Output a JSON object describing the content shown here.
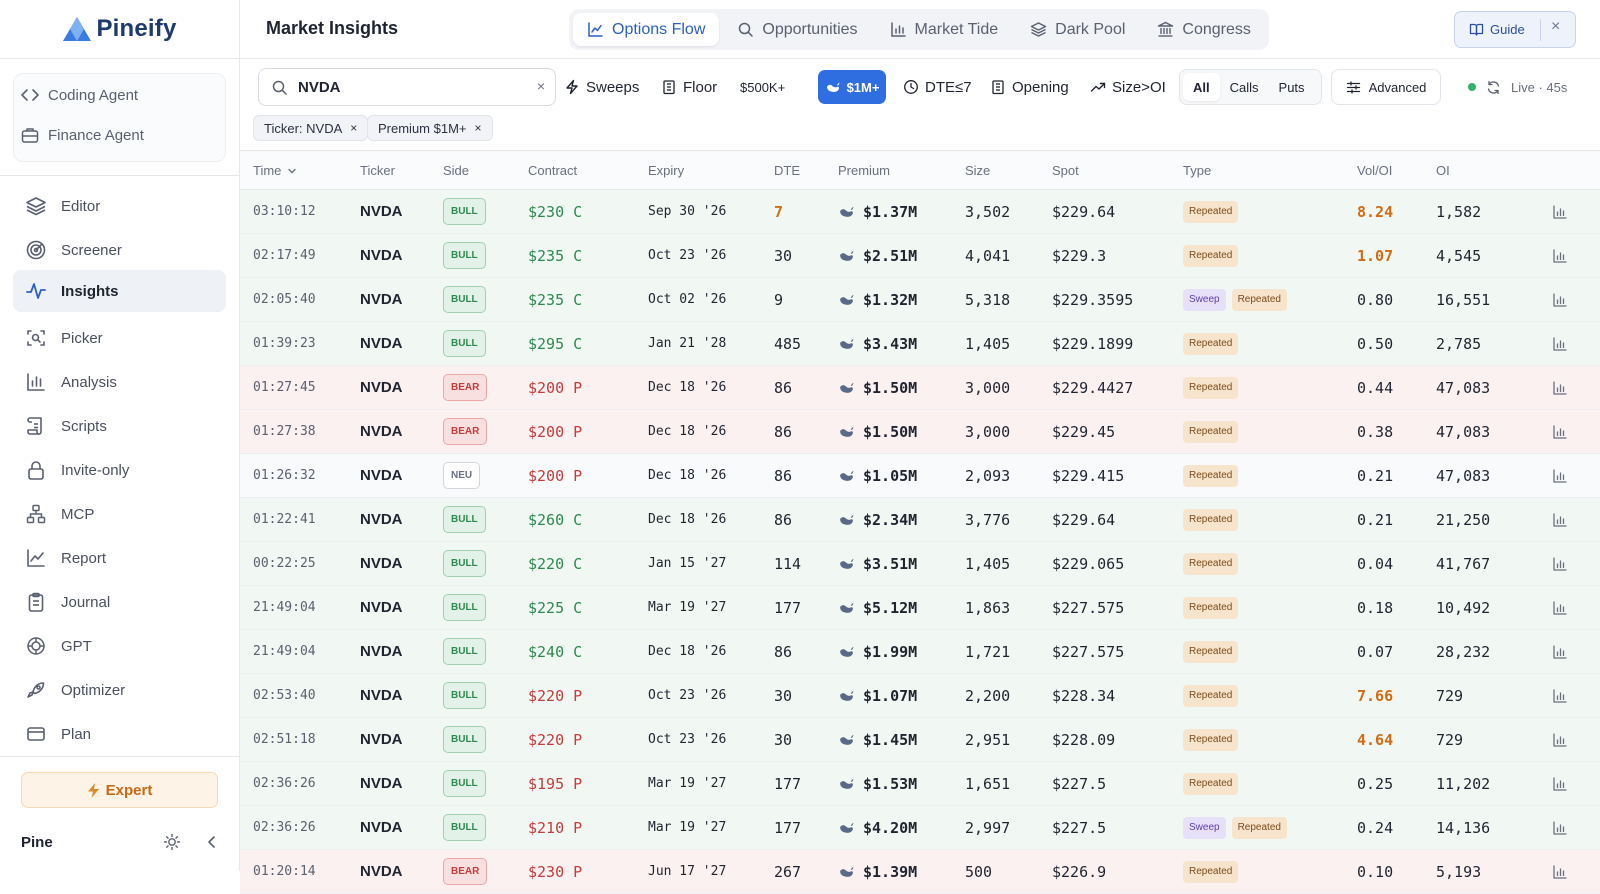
{
  "sidebar": {
    "logo_text": "Pineify",
    "agents": [
      {
        "label": "Coding Agent",
        "icon": "code-icon"
      },
      {
        "label": "Finance Agent",
        "icon": "briefcase-icon"
      }
    ],
    "nav": [
      {
        "label": "Editor",
        "icon": "layers-icon",
        "active": false
      },
      {
        "label": "Screener",
        "icon": "radar-icon",
        "active": false
      },
      {
        "label": "Insights",
        "icon": "activity-icon",
        "active": true
      },
      {
        "label": "Picker",
        "icon": "scan-icon",
        "active": false
      },
      {
        "label": "Analysis",
        "icon": "bar-chart-icon",
        "active": false
      },
      {
        "label": "Scripts",
        "icon": "scroll-icon",
        "active": false
      },
      {
        "label": "Invite-only",
        "icon": "lock-icon",
        "active": false
      },
      {
        "label": "MCP",
        "icon": "network-icon",
        "active": false
      },
      {
        "label": "Report",
        "icon": "line-chart-icon",
        "active": false
      },
      {
        "label": "Journal",
        "icon": "clipboard-icon",
        "active": false
      },
      {
        "label": "GPT",
        "icon": "openai-icon",
        "active": false
      },
      {
        "label": "Optimizer",
        "icon": "rocket-icon",
        "active": false
      },
      {
        "label": "Plan",
        "icon": "card-icon",
        "active": false
      }
    ],
    "expert_label": "Expert",
    "user_name": "Pine"
  },
  "header": {
    "title": "Market Insights",
    "tabs": [
      {
        "label": "Options Flow",
        "icon": "line-chart-icon",
        "active": true
      },
      {
        "label": "Opportunities",
        "icon": "search-icon",
        "active": false
      },
      {
        "label": "Market Tide",
        "icon": "bar-chart-icon",
        "active": false
      },
      {
        "label": "Dark Pool",
        "icon": "layers-icon",
        "active": false
      },
      {
        "label": "Congress",
        "icon": "capitol-icon",
        "active": false
      }
    ],
    "guide_label": "Guide"
  },
  "filters": {
    "search_value": "NVDA",
    "buttons": {
      "sweeps": "Sweeps",
      "floor": "Floor",
      "p500k": "$500K+",
      "p1m": "$1M+",
      "dte": "DTE≤7",
      "opening": "Opening",
      "size_oi": "Size>OI"
    },
    "segments": [
      "All",
      "Calls",
      "Puts"
    ],
    "segment_active": "All",
    "advanced_label": "Advanced",
    "live_label": "Live · 45s",
    "chips": [
      "Ticker: NVDA",
      "Premium $1M+"
    ]
  },
  "table": {
    "columns": {
      "time": "Time",
      "ticker": "Ticker",
      "side": "Side",
      "contract": "Contract",
      "expiry": "Expiry",
      "dte": "DTE",
      "premium": "Premium",
      "size": "Size",
      "spot": "Spot",
      "type": "Type",
      "voloi": "Vol/OI",
      "oi": "OI"
    },
    "rows": [
      {
        "time": "03:10:12",
        "ticker": "NVDA",
        "side": "BULL",
        "contract": "$230 C",
        "expiry": "Sep 30 '26",
        "dte": "7",
        "premium": "$1.37M",
        "size": "3,502",
        "spot": "$229.64",
        "tags": [
          "Repeated"
        ],
        "voloi": "8.24",
        "oi": "1,582"
      },
      {
        "time": "02:17:49",
        "ticker": "NVDA",
        "side": "BULL",
        "contract": "$235 C",
        "expiry": "Oct 23 '26",
        "dte": "30",
        "premium": "$2.51M",
        "size": "4,041",
        "spot": "$229.3",
        "tags": [
          "Repeated"
        ],
        "voloi": "1.07",
        "oi": "4,545"
      },
      {
        "time": "02:05:40",
        "ticker": "NVDA",
        "side": "BULL",
        "contract": "$235 C",
        "expiry": "Oct 02 '26",
        "dte": "9",
        "premium": "$1.32M",
        "size": "5,318",
        "spot": "$229.3595",
        "tags": [
          "Sweep",
          "Repeated"
        ],
        "voloi": "0.80",
        "oi": "16,551"
      },
      {
        "time": "01:39:23",
        "ticker": "NVDA",
        "side": "BULL",
        "contract": "$295 C",
        "expiry": "Jan 21 '28",
        "dte": "485",
        "premium": "$3.43M",
        "size": "1,405",
        "spot": "$229.1899",
        "tags": [
          "Repeated"
        ],
        "voloi": "0.50",
        "oi": "2,785"
      },
      {
        "time": "01:27:45",
        "ticker": "NVDA",
        "side": "BEAR",
        "contract": "$200 P",
        "expiry": "Dec 18 '26",
        "dte": "86",
        "premium": "$1.50M",
        "size": "3,000",
        "spot": "$229.4427",
        "tags": [
          "Repeated"
        ],
        "voloi": "0.44",
        "oi": "47,083"
      },
      {
        "time": "01:27:38",
        "ticker": "NVDA",
        "side": "BEAR",
        "contract": "$200 P",
        "expiry": "Dec 18 '26",
        "dte": "86",
        "premium": "$1.50M",
        "size": "3,000",
        "spot": "$229.45",
        "tags": [
          "Repeated"
        ],
        "voloi": "0.38",
        "oi": "47,083"
      },
      {
        "time": "01:26:32",
        "ticker": "NVDA",
        "side": "NEU",
        "contract": "$200 P",
        "expiry": "Dec 18 '26",
        "dte": "86",
        "premium": "$1.05M",
        "size": "2,093",
        "spot": "$229.415",
        "tags": [
          "Repeated"
        ],
        "voloi": "0.21",
        "oi": "47,083"
      },
      {
        "time": "01:22:41",
        "ticker": "NVDA",
        "side": "BULL",
        "contract": "$260 C",
        "expiry": "Dec 18 '26",
        "dte": "86",
        "premium": "$2.34M",
        "size": "3,776",
        "spot": "$229.64",
        "tags": [
          "Repeated"
        ],
        "voloi": "0.21",
        "oi": "21,250"
      },
      {
        "time": "00:22:25",
        "ticker": "NVDA",
        "side": "BULL",
        "contract": "$220 C",
        "expiry": "Jan 15 '27",
        "dte": "114",
        "premium": "$3.51M",
        "size": "1,405",
        "spot": "$229.065",
        "tags": [
          "Repeated"
        ],
        "voloi": "0.04",
        "oi": "41,767"
      },
      {
        "time": "21:49:04",
        "ticker": "NVDA",
        "side": "BULL",
        "contract": "$225 C",
        "expiry": "Mar 19 '27",
        "dte": "177",
        "premium": "$5.12M",
        "size": "1,863",
        "spot": "$227.575",
        "tags": [
          "Repeated"
        ],
        "voloi": "0.18",
        "oi": "10,492"
      },
      {
        "time": "21:49:04",
        "ticker": "NVDA",
        "side": "BULL",
        "contract": "$240 C",
        "expiry": "Dec 18 '26",
        "dte": "86",
        "premium": "$1.99M",
        "size": "1,721",
        "spot": "$227.575",
        "tags": [
          "Repeated"
        ],
        "voloi": "0.07",
        "oi": "28,232"
      },
      {
        "time": "02:53:40",
        "ticker": "NVDA",
        "side": "BULL",
        "contract": "$220 P",
        "expiry": "Oct 23 '26",
        "dte": "30",
        "premium": "$1.07M",
        "size": "2,200",
        "spot": "$228.34",
        "tags": [
          "Repeated"
        ],
        "voloi": "7.66",
        "oi": "729"
      },
      {
        "time": "02:51:18",
        "ticker": "NVDA",
        "side": "BULL",
        "contract": "$220 P",
        "expiry": "Oct 23 '26",
        "dte": "30",
        "premium": "$1.45M",
        "size": "2,951",
        "spot": "$228.09",
        "tags": [
          "Repeated"
        ],
        "voloi": "4.64",
        "oi": "729"
      },
      {
        "time": "02:36:26",
        "ticker": "NVDA",
        "side": "BULL",
        "contract": "$195 P",
        "expiry": "Mar 19 '27",
        "dte": "177",
        "premium": "$1.53M",
        "size": "1,651",
        "spot": "$227.5",
        "tags": [
          "Repeated"
        ],
        "voloi": "0.25",
        "oi": "11,202"
      },
      {
        "time": "02:36:26",
        "ticker": "NVDA",
        "side": "BULL",
        "contract": "$210 P",
        "expiry": "Mar 19 '27",
        "dte": "177",
        "premium": "$4.20M",
        "size": "2,997",
        "spot": "$227.5",
        "tags": [
          "Sweep",
          "Repeated"
        ],
        "voloi": "0.24",
        "oi": "14,136"
      },
      {
        "time": "01:20:14",
        "ticker": "NVDA",
        "side": "BEAR",
        "contract": "$230 P",
        "expiry": "Jun 17 '27",
        "dte": "267",
        "premium": "$1.39M",
        "size": "500",
        "spot": "$226.9",
        "tags": [
          "Repeated"
        ],
        "voloi": "0.10",
        "oi": "5,193"
      }
    ]
  },
  "colors": {
    "accent": "#2f6ee0",
    "bull": "#2e8a4f",
    "bear": "#c63b3b",
    "highlight": "#d46b12",
    "expert": "#c96a12"
  }
}
